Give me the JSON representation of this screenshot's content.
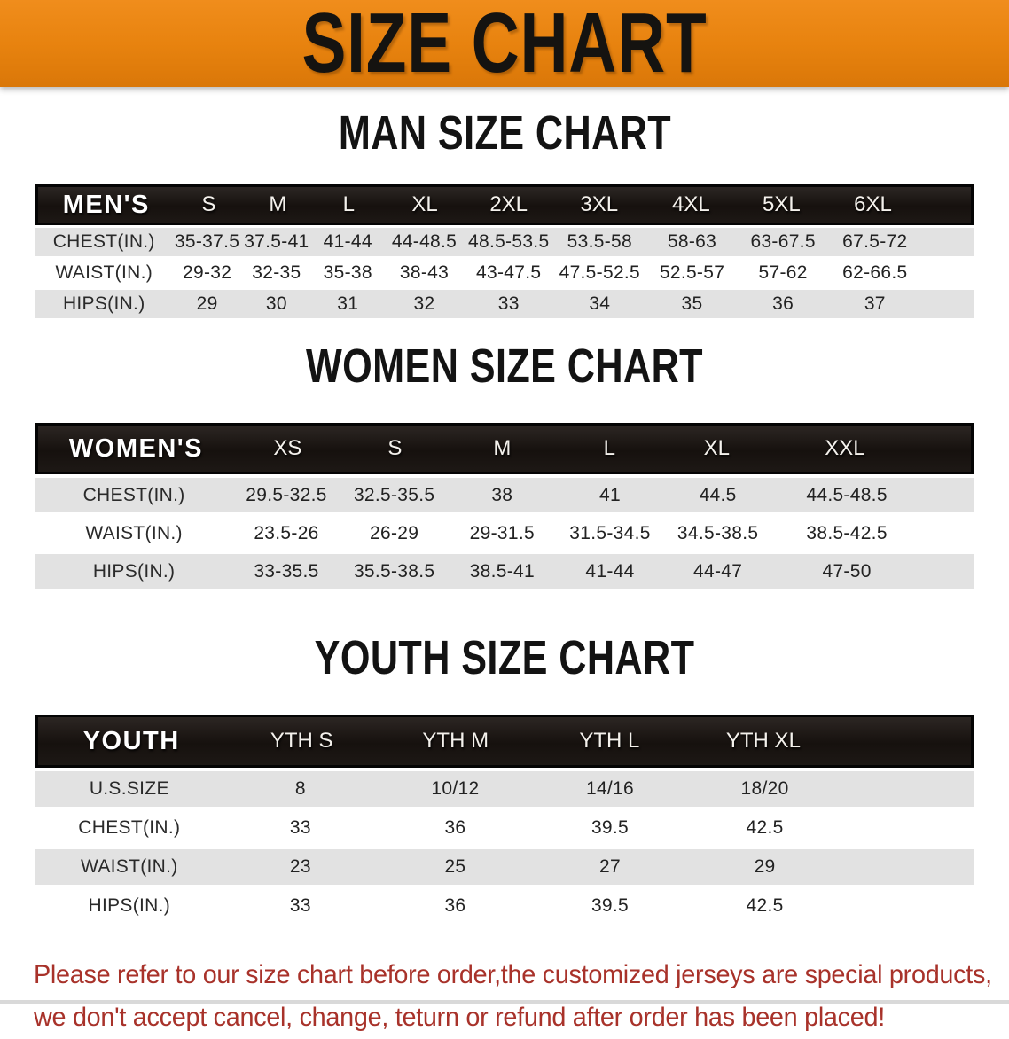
{
  "banner": {
    "title": "SIZE CHART",
    "bg_color": "#E8830F",
    "text_color": "#151310"
  },
  "colors": {
    "band_black": "#16110E",
    "row_gray": "#E2E2E2",
    "disclaimer_red": "#A8322A"
  },
  "sections": [
    {
      "id": "men",
      "heading": "MAN SIZE CHART",
      "table": {
        "header_label": "MEN'S",
        "columns": [
          "S",
          "M",
          "L",
          "XL",
          "2XL",
          "3XL",
          "4XL",
          "5XL",
          "6XL"
        ],
        "rows": [
          {
            "label": "CHEST(IN.)",
            "values": [
              "35-37.5",
              "37.5-41",
              "41-44",
              "44-48.5",
              "48.5-53.5",
              "53.5-58",
              "58-63",
              "63-67.5",
              "67.5-72"
            ]
          },
          {
            "label": "WAIST(IN.)",
            "values": [
              "29-32",
              "32-35",
              "35-38",
              "38-43",
              "43-47.5",
              "47.5-52.5",
              "52.5-57",
              "57-62",
              "62-66.5"
            ]
          },
          {
            "label": "HIPS(IN.)",
            "values": [
              "29",
              "30",
              "31",
              "32",
              "33",
              "34",
              "35",
              "36",
              "37"
            ]
          }
        ]
      }
    },
    {
      "id": "women",
      "heading": "WOMEN SIZE CHART",
      "table": {
        "header_label": "WOMEN'S",
        "columns": [
          "XS",
          "S",
          "M",
          "L",
          "XL",
          "XXL"
        ],
        "rows": [
          {
            "label": "CHEST(IN.)",
            "values": [
              "29.5-32.5",
              "32.5-35.5",
              "38",
              "41",
              "44.5",
              "44.5-48.5"
            ]
          },
          {
            "label": "WAIST(IN.)",
            "values": [
              "23.5-26",
              "26-29",
              "29-31.5",
              "31.5-34.5",
              "34.5-38.5",
              "38.5-42.5"
            ]
          },
          {
            "label": "HIPS(IN.)",
            "values": [
              "33-35.5",
              "35.5-38.5",
              "38.5-41",
              "41-44",
              "44-47",
              "47-50"
            ]
          }
        ]
      }
    },
    {
      "id": "youth",
      "heading": "YOUTH SIZE CHART",
      "table": {
        "header_label": "YOUTH",
        "columns": [
          "YTH S",
          "YTH M",
          "YTH L",
          "YTH XL"
        ],
        "rows": [
          {
            "label": "U.S.SIZE",
            "values": [
              "8",
              "10/12",
              "14/16",
              "18/20"
            ]
          },
          {
            "label": "CHEST(IN.)",
            "values": [
              "33",
              "36",
              "39.5",
              "42.5"
            ]
          },
          {
            "label": "WAIST(IN.)",
            "values": [
              "23",
              "25",
              "27",
              "29"
            ]
          },
          {
            "label": "HIPS(IN.)",
            "values": [
              "33",
              "36",
              "39.5",
              "42.5"
            ]
          }
        ]
      }
    }
  ],
  "disclaimer": {
    "line1": "Please refer to our size chart before order,the customized jerseys are special products,",
    "line2": "we don't accept cancel, change, teturn or refund after order has been placed!"
  }
}
